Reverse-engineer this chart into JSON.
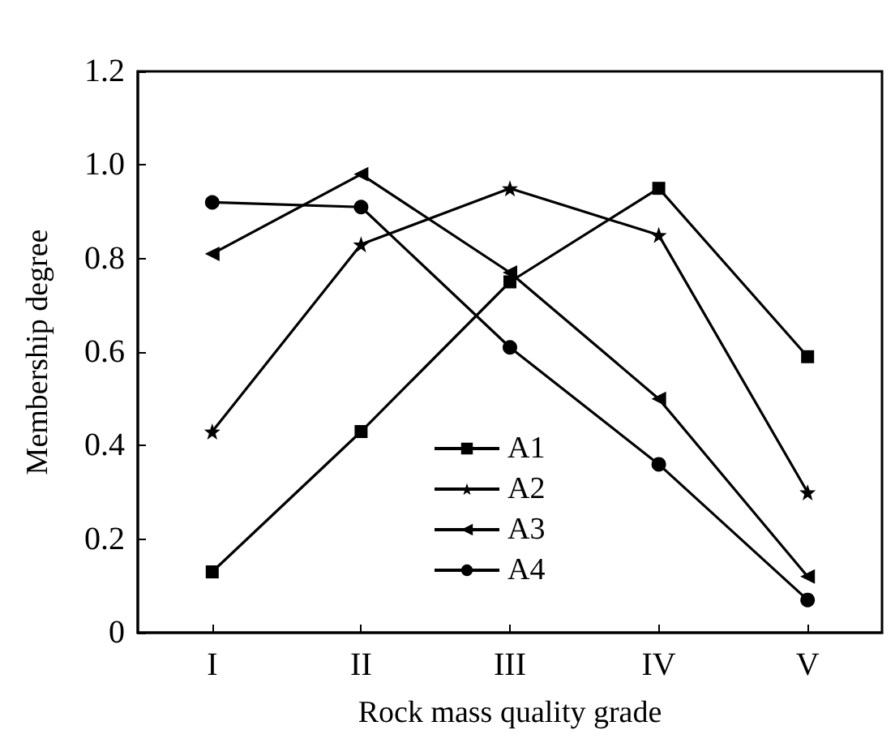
{
  "chart_data": {
    "type": "line",
    "xlabel": "Rock mass quality grade",
    "ylabel": "Membership degree",
    "categories": [
      "I",
      "II",
      "III",
      "IV",
      "V"
    ],
    "series": [
      {
        "name": "A1",
        "color": "#000000",
        "marker": "square",
        "values": [
          0.13,
          0.43,
          0.75,
          0.95,
          0.59
        ]
      },
      {
        "name": "A2",
        "color": "#000000",
        "marker": "star",
        "values": [
          0.43,
          0.83,
          0.95,
          0.85,
          0.3
        ]
      },
      {
        "name": "A3",
        "color": "#000000",
        "marker": "triangle",
        "values": [
          0.81,
          0.98,
          0.77,
          0.5,
          0.12
        ]
      },
      {
        "name": "A4",
        "color": "#000000",
        "marker": "circle",
        "values": [
          0.92,
          0.91,
          0.61,
          0.36,
          0.07
        ]
      }
    ],
    "ylim": [
      0,
      1.2
    ],
    "yticks": [
      0,
      0.2,
      0.4,
      0.6,
      0.8,
      {
        "value": 1,
        "label": "1.0"
      },
      1.2
    ],
    "grid": false,
    "legend": "bottom",
    "line_style": "solid"
  }
}
